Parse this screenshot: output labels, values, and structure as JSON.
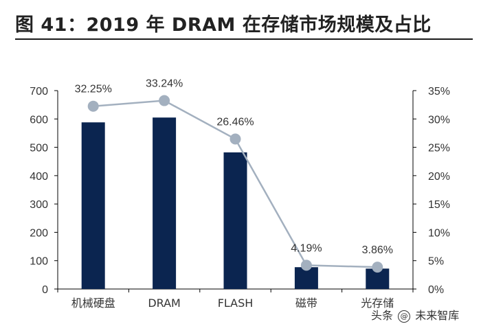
{
  "header": {
    "title": "图 41：2019 年 DRAM 在存储市场规模及占比"
  },
  "watermark": {
    "prefix": "头条",
    "name": "未来智库",
    "icon": "at-icon"
  },
  "colors": {
    "bar": "#0b2550",
    "line": "#a3b0bf",
    "marker": "#a3b0bf",
    "axis": "#000000",
    "text": "#333333"
  },
  "chart_data": {
    "type": "bar",
    "title": "2019 年 DRAM 在存储市场规模及占比",
    "categories": [
      "机械硬盘",
      "DRAM",
      "FLASH",
      "磁带",
      "光存储"
    ],
    "series": [
      {
        "name": "市场规模",
        "type": "bar",
        "axis": "left",
        "values": [
          588,
          605,
          482,
          77,
          72
        ]
      },
      {
        "name": "占比",
        "type": "line",
        "axis": "right",
        "values": [
          32.25,
          33.24,
          26.46,
          4.19,
          3.86
        ],
        "labels": [
          "32.25%",
          "33.24%",
          "26.46%",
          "4.19%",
          "3.86%"
        ]
      }
    ],
    "ylim": [
      0,
      700
    ],
    "yticks": [
      0,
      100,
      200,
      300,
      400,
      500,
      600,
      700
    ],
    "y2lim": [
      0,
      35
    ],
    "y2ticks": [
      "0%",
      "5%",
      "10%",
      "15%",
      "20%",
      "25%",
      "30%",
      "35%"
    ],
    "xlabel": "",
    "ylabel": "",
    "grid": false
  }
}
